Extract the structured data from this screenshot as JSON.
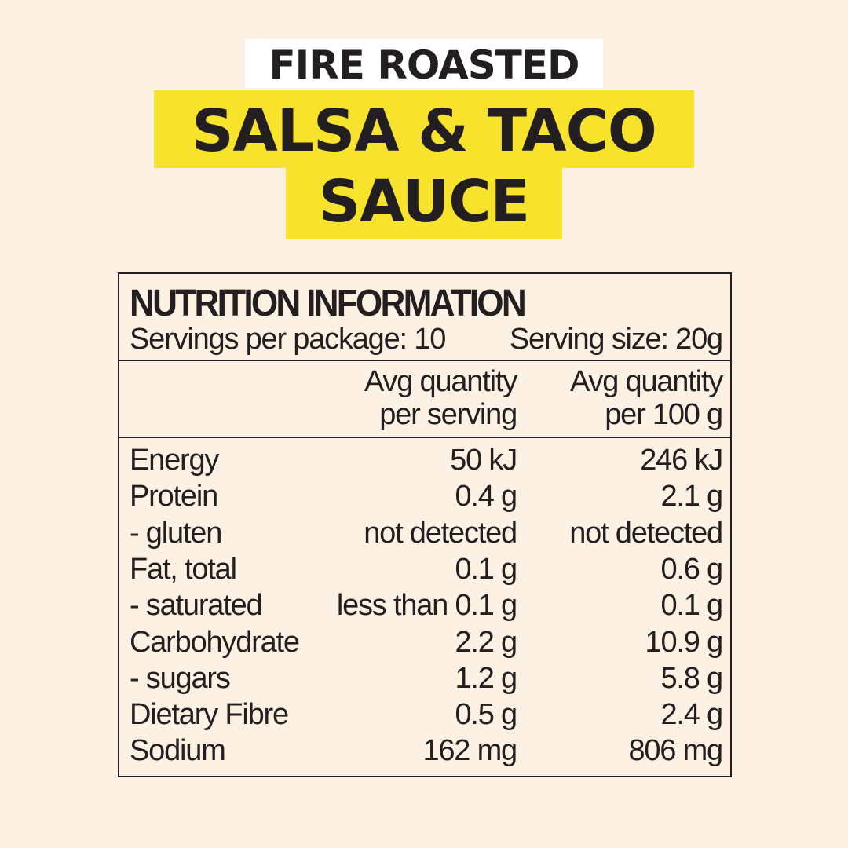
{
  "title": {
    "line1": "FIRE ROASTED",
    "line2": "SALSA & TACO",
    "line3": "SAUCE"
  },
  "colors": {
    "background": "#fdf1e3",
    "highlight": "#f8e32c",
    "text": "#231f20"
  },
  "panel": {
    "heading": "NUTRITION INFORMATION",
    "servings": "Servings per package: 10",
    "serving_size": "Serving size: 20g",
    "col1_header": [
      "Avg quantity",
      "per serving"
    ],
    "col2_header": [
      "Avg quantity",
      "per 100 g"
    ],
    "rows": [
      {
        "label": "Energy",
        "per_serving": "50 kJ",
        "per_100g": "246 kJ"
      },
      {
        "label": "Protein",
        "per_serving": "0.4 g",
        "per_100g": "2.1 g"
      },
      {
        "label": "- gluten",
        "per_serving": "not detected",
        "per_100g": "not detected"
      },
      {
        "label": "Fat, total",
        "per_serving": "0.1 g",
        "per_100g": "0.6 g"
      },
      {
        "label": "- saturated",
        "per_serving": "less than 0.1 g",
        "per_100g": "0.1 g"
      },
      {
        "label": "Carbohydrate",
        "per_serving": "2.2 g",
        "per_100g": "10.9 g"
      },
      {
        "label": "- sugars",
        "per_serving": "1.2 g",
        "per_100g": "5.8 g"
      },
      {
        "label": "Dietary Fibre",
        "per_serving": "0.5 g",
        "per_100g": "2.4 g"
      },
      {
        "label": "Sodium",
        "per_serving": "162 mg",
        "per_100g": "806 mg"
      }
    ]
  }
}
